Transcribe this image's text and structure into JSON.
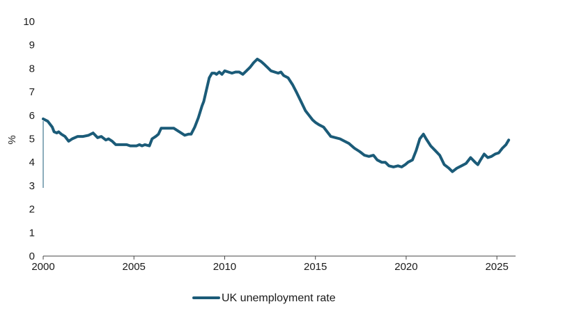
{
  "chart_data": {
    "type": "line",
    "ylabel": "%",
    "xlabel": "",
    "ylim": [
      0,
      10
    ],
    "xlim": [
      2000,
      2025.7
    ],
    "y_ticks": [
      "0",
      "1",
      "2",
      "3",
      "4",
      "5",
      "6",
      "7",
      "8",
      "9",
      "10"
    ],
    "x_ticks": [
      "2000",
      "2005",
      "2010",
      "2015",
      "2020",
      "2025"
    ],
    "grid": false,
    "legend": {
      "position": "bottom-center",
      "entries": [
        "UK unemployment rate"
      ]
    },
    "series": [
      {
        "name": "UK unemployment rate",
        "color": "#1b5b78",
        "points": [
          [
            2000.0,
            5.85
          ],
          [
            2000.25,
            5.75
          ],
          [
            2000.5,
            5.5
          ],
          [
            2000.6,
            5.3
          ],
          [
            2000.75,
            5.25
          ],
          [
            2000.85,
            5.3
          ],
          [
            2001.0,
            5.2
          ],
          [
            2001.2,
            5.1
          ],
          [
            2001.4,
            4.9
          ],
          [
            2001.6,
            5.0
          ],
          [
            2001.9,
            5.1
          ],
          [
            2002.2,
            5.1
          ],
          [
            2002.5,
            5.15
          ],
          [
            2002.75,
            5.25
          ],
          [
            2003.0,
            5.05
          ],
          [
            2003.2,
            5.1
          ],
          [
            2003.45,
            4.95
          ],
          [
            2003.6,
            5.0
          ],
          [
            2003.8,
            4.9
          ],
          [
            2004.0,
            4.75
          ],
          [
            2004.3,
            4.75
          ],
          [
            2004.6,
            4.75
          ],
          [
            2004.8,
            4.7
          ],
          [
            2005.0,
            4.7
          ],
          [
            2005.15,
            4.7
          ],
          [
            2005.3,
            4.75
          ],
          [
            2005.45,
            4.7
          ],
          [
            2005.6,
            4.75
          ],
          [
            2005.85,
            4.7
          ],
          [
            2006.0,
            5.0
          ],
          [
            2006.2,
            5.1
          ],
          [
            2006.35,
            5.2
          ],
          [
            2006.5,
            5.45
          ],
          [
            2006.7,
            5.45
          ],
          [
            2006.85,
            5.45
          ],
          [
            2007.0,
            5.45
          ],
          [
            2007.2,
            5.45
          ],
          [
            2007.4,
            5.35
          ],
          [
            2007.6,
            5.25
          ],
          [
            2007.8,
            5.15
          ],
          [
            2008.0,
            5.2
          ],
          [
            2008.15,
            5.2
          ],
          [
            2008.35,
            5.5
          ],
          [
            2008.55,
            5.9
          ],
          [
            2008.75,
            6.4
          ],
          [
            2008.85,
            6.6
          ],
          [
            2009.0,
            7.1
          ],
          [
            2009.15,
            7.6
          ],
          [
            2009.3,
            7.8
          ],
          [
            2009.45,
            7.8
          ],
          [
            2009.55,
            7.75
          ],
          [
            2009.7,
            7.85
          ],
          [
            2009.85,
            7.75
          ],
          [
            2010.0,
            7.9
          ],
          [
            2010.2,
            7.85
          ],
          [
            2010.4,
            7.8
          ],
          [
            2010.6,
            7.85
          ],
          [
            2010.8,
            7.85
          ],
          [
            2011.0,
            7.75
          ],
          [
            2011.2,
            7.9
          ],
          [
            2011.4,
            8.05
          ],
          [
            2011.6,
            8.25
          ],
          [
            2011.8,
            8.4
          ],
          [
            2012.0,
            8.3
          ],
          [
            2012.15,
            8.2
          ],
          [
            2012.35,
            8.05
          ],
          [
            2012.55,
            7.9
          ],
          [
            2012.75,
            7.85
          ],
          [
            2012.95,
            7.8
          ],
          [
            2013.1,
            7.85
          ],
          [
            2013.25,
            7.7
          ],
          [
            2013.5,
            7.6
          ],
          [
            2013.75,
            7.3
          ],
          [
            2013.95,
            7.0
          ],
          [
            2014.2,
            6.6
          ],
          [
            2014.45,
            6.2
          ],
          [
            2014.65,
            6.0
          ],
          [
            2014.85,
            5.8
          ],
          [
            2015.0,
            5.7
          ],
          [
            2015.2,
            5.6
          ],
          [
            2015.45,
            5.5
          ],
          [
            2015.65,
            5.3
          ],
          [
            2015.85,
            5.1
          ],
          [
            2016.1,
            5.05
          ],
          [
            2016.35,
            5.0
          ],
          [
            2016.6,
            4.9
          ],
          [
            2016.85,
            4.8
          ],
          [
            2017.15,
            4.6
          ],
          [
            2017.45,
            4.45
          ],
          [
            2017.7,
            4.3
          ],
          [
            2017.95,
            4.25
          ],
          [
            2018.2,
            4.3
          ],
          [
            2018.4,
            4.1
          ],
          [
            2018.65,
            4.0
          ],
          [
            2018.85,
            4.0
          ],
          [
            2019.05,
            3.85
          ],
          [
            2019.3,
            3.8
          ],
          [
            2019.55,
            3.85
          ],
          [
            2019.75,
            3.8
          ],
          [
            2019.95,
            3.9
          ],
          [
            2020.1,
            4.0
          ],
          [
            2020.35,
            4.1
          ],
          [
            2020.55,
            4.5
          ],
          [
            2020.75,
            5.0
          ],
          [
            2020.95,
            5.2
          ],
          [
            2021.1,
            5.0
          ],
          [
            2021.35,
            4.7
          ],
          [
            2021.6,
            4.5
          ],
          [
            2021.85,
            4.3
          ],
          [
            2022.1,
            3.9
          ],
          [
            2022.35,
            3.75
          ],
          [
            2022.55,
            3.6
          ],
          [
            2022.8,
            3.75
          ],
          [
            2023.05,
            3.85
          ],
          [
            2023.3,
            3.95
          ],
          [
            2023.55,
            4.2
          ],
          [
            2023.8,
            4.0
          ],
          [
            2023.95,
            3.9
          ],
          [
            2024.1,
            4.1
          ],
          [
            2024.3,
            4.35
          ],
          [
            2024.5,
            4.2
          ],
          [
            2024.7,
            4.25
          ],
          [
            2024.9,
            4.35
          ],
          [
            2025.1,
            4.4
          ],
          [
            2025.3,
            4.6
          ],
          [
            2025.5,
            4.75
          ],
          [
            2025.65,
            4.95
          ]
        ]
      }
    ]
  }
}
